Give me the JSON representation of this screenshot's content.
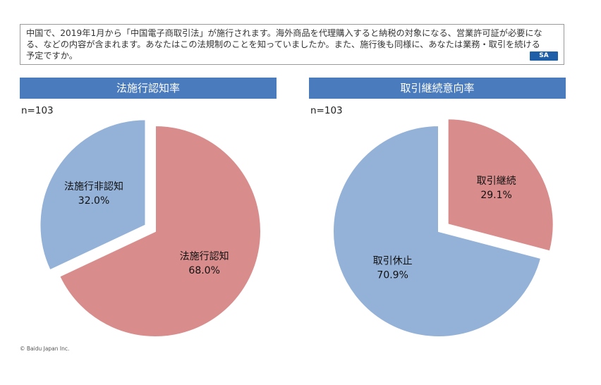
{
  "question": {
    "text": "中国で、2019年1月から「中国電子商取引法」が施行されます。海外商品を代理購入すると納税の対象になる、営業許可証が必要になる、などの内容が含まれます。あなたはこの法規制のことを知っていましたか。また、施行後も同様に、あなたは業務・取引を続ける予定ですか。",
    "badge": "SA"
  },
  "chart_data": [
    {
      "type": "pie",
      "title": "法施行認知率",
      "n_label": "n=103",
      "colors": {
        "header": "#4a7bbd"
      },
      "slices": [
        {
          "label": "法施行認知",
          "value_label": "68.0%",
          "value": 68.0,
          "color": "#d98c8c",
          "exploded": false
        },
        {
          "label": "法施行非認知",
          "value_label": "32.0%",
          "value": 32.0,
          "color": "#94b2d8",
          "exploded": true
        }
      ]
    },
    {
      "type": "pie",
      "title": "取引継続意向率",
      "n_label": "n=103",
      "colors": {
        "header": "#4a7bbd"
      },
      "slices": [
        {
          "label": "取引継続",
          "value_label": "29.1%",
          "value": 29.1,
          "color": "#d98c8c",
          "exploded": true
        },
        {
          "label": "取引休止",
          "value_label": "70.9%",
          "value": 70.9,
          "color": "#94b2d8",
          "exploded": false
        }
      ]
    }
  ],
  "footer": {
    "copyright": "© Baidu Japan Inc."
  }
}
